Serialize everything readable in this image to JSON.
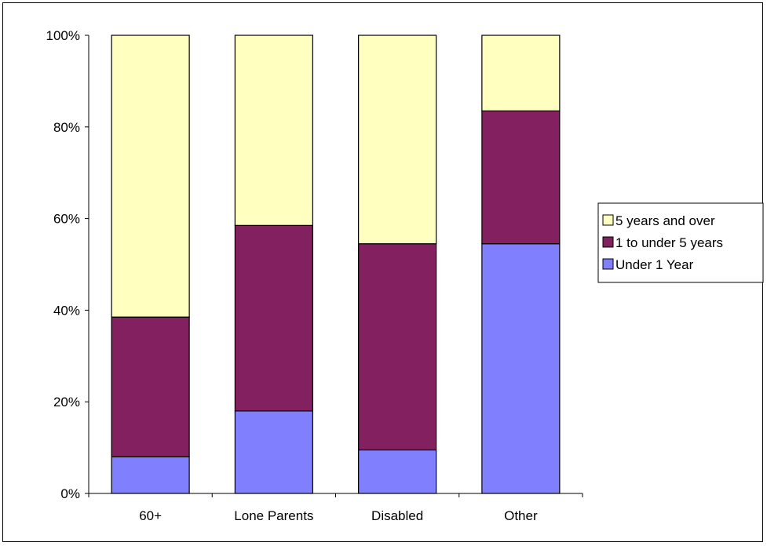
{
  "chart_data": {
    "type": "bar",
    "stacked": true,
    "percent": true,
    "categories": [
      "60+",
      "Lone Parents",
      "Disabled",
      "Other"
    ],
    "series": [
      {
        "name": "Under 1 Year",
        "color": "#8080ff",
        "values": [
          8,
          18,
          9.5,
          54.5
        ]
      },
      {
        "name": "1 to under 5 years",
        "color": "#800000",
        "fill": "#822060",
        "values": [
          30.5,
          40.5,
          45,
          29
        ]
      },
      {
        "name": "5 years and over",
        "color": "#ffffc0",
        "values": [
          61.5,
          41.5,
          45.5,
          16.5
        ]
      }
    ],
    "ylim": [
      0,
      100
    ],
    "yticks": [
      "0%",
      "20%",
      "40%",
      "60%",
      "80%",
      "100%"
    ],
    "grid": false,
    "legend": {
      "position": "right",
      "order": [
        "5 years and over",
        "1 to under 5 years",
        "Under 1 Year"
      ]
    },
    "title": "",
    "xlabel": "",
    "ylabel": ""
  }
}
